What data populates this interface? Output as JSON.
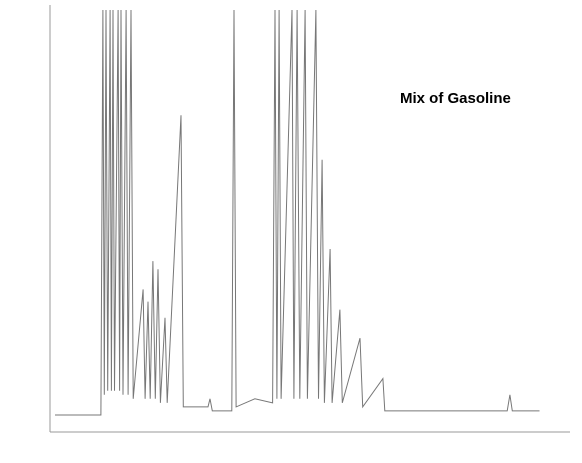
{
  "chart_data": {
    "type": "line",
    "annotation": "Mix of Gasoline",
    "xlim": [
      0,
      30
    ],
    "ylim": [
      0,
      100
    ],
    "series": [
      {
        "color": "#777777",
        "x": [
          0,
          2.7,
          2.82,
          2.9,
          3.0,
          3.1,
          3.24,
          3.32,
          3.41,
          3.5,
          3.71,
          3.8,
          3.88,
          4.0,
          4.18,
          4.3,
          4.47,
          4.6,
          5.18,
          5.3,
          5.47,
          5.6,
          5.76,
          5.9,
          6.06,
          6.2,
          6.47,
          6.6,
          7.41,
          7.55,
          9.0,
          9.12,
          9.25,
          10.4,
          10.53,
          10.65,
          11.76,
          12.8,
          12.94,
          13.05,
          13.18,
          13.3,
          13.94,
          14.05,
          14.24,
          14.4,
          14.71,
          14.85,
          15.35,
          15.5,
          15.71,
          15.85,
          16.18,
          16.3,
          16.76,
          16.9,
          17.94,
          18.1,
          19.29,
          19.4,
          26.6,
          26.76,
          26.9,
          28.5
        ],
        "values": [
          0,
          0,
          100,
          5,
          100,
          6,
          100,
          6,
          100,
          6,
          100,
          6,
          100,
          5,
          100,
          5,
          100,
          4,
          31,
          4,
          28,
          4,
          38,
          4,
          36,
          3,
          24,
          3,
          74,
          2,
          2,
          4,
          1,
          1,
          100,
          2,
          4,
          3,
          100,
          4,
          100,
          4,
          100,
          4,
          100,
          4,
          100,
          4,
          100,
          4,
          63,
          3,
          41,
          3,
          26,
          3,
          19,
          2,
          9,
          1,
          1,
          5,
          1,
          1
        ]
      }
    ]
  }
}
